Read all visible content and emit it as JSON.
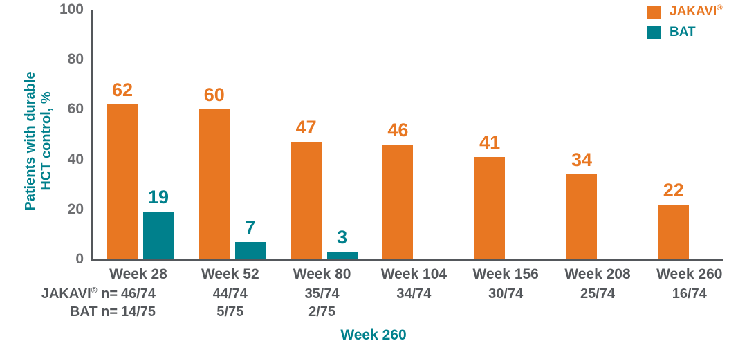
{
  "colors": {
    "jakavi_orange": "#E87722",
    "bat_teal": "#00808C",
    "axis_gray": "#54575B",
    "tick_gray": "#6D6E71"
  },
  "legend": {
    "items": [
      {
        "name": "JAKAVI",
        "sup": "®",
        "color": "#E87722"
      },
      {
        "name": "BAT",
        "sup": "",
        "color": "#00808C"
      }
    ]
  },
  "y_axis": {
    "label_line1": "Patients with durable",
    "label_line2": "HCT control, %"
  },
  "footer": {
    "jakavi_row": {
      "name": "JAKAVI",
      "sup": "®",
      "suffix": " n="
    },
    "bat_row": {
      "name": "BAT",
      "sup": "",
      "suffix": " n="
    },
    "caption": "Week 260"
  },
  "chart_data": {
    "type": "bar",
    "title": "",
    "categories": [
      "Week 28",
      "Week 52",
      "Week 80",
      "Week 104",
      "Week 156",
      "Week 208",
      "Week 260"
    ],
    "series": [
      {
        "name": "JAKAVI®",
        "color": "#E87722",
        "values": [
          62,
          60,
          47,
          46,
          41,
          34,
          22
        ],
        "n_values": [
          "46/74",
          "44/74",
          "35/74",
          "34/74",
          "30/74",
          "25/74",
          "16/74"
        ]
      },
      {
        "name": "BAT",
        "color": "#00808C",
        "values": [
          19,
          7,
          3,
          null,
          null,
          null,
          null
        ],
        "n_values": [
          "14/75",
          "5/75",
          "2/75",
          null,
          null,
          null,
          null
        ]
      }
    ],
    "xlabel": "",
    "ylabel": "Patients with durable HCT control, %",
    "ylim": [
      0,
      100
    ],
    "yticks": [
      0,
      20,
      40,
      60,
      80,
      100
    ],
    "grid": false,
    "legend_position": "top-right",
    "value_labels": true
  }
}
